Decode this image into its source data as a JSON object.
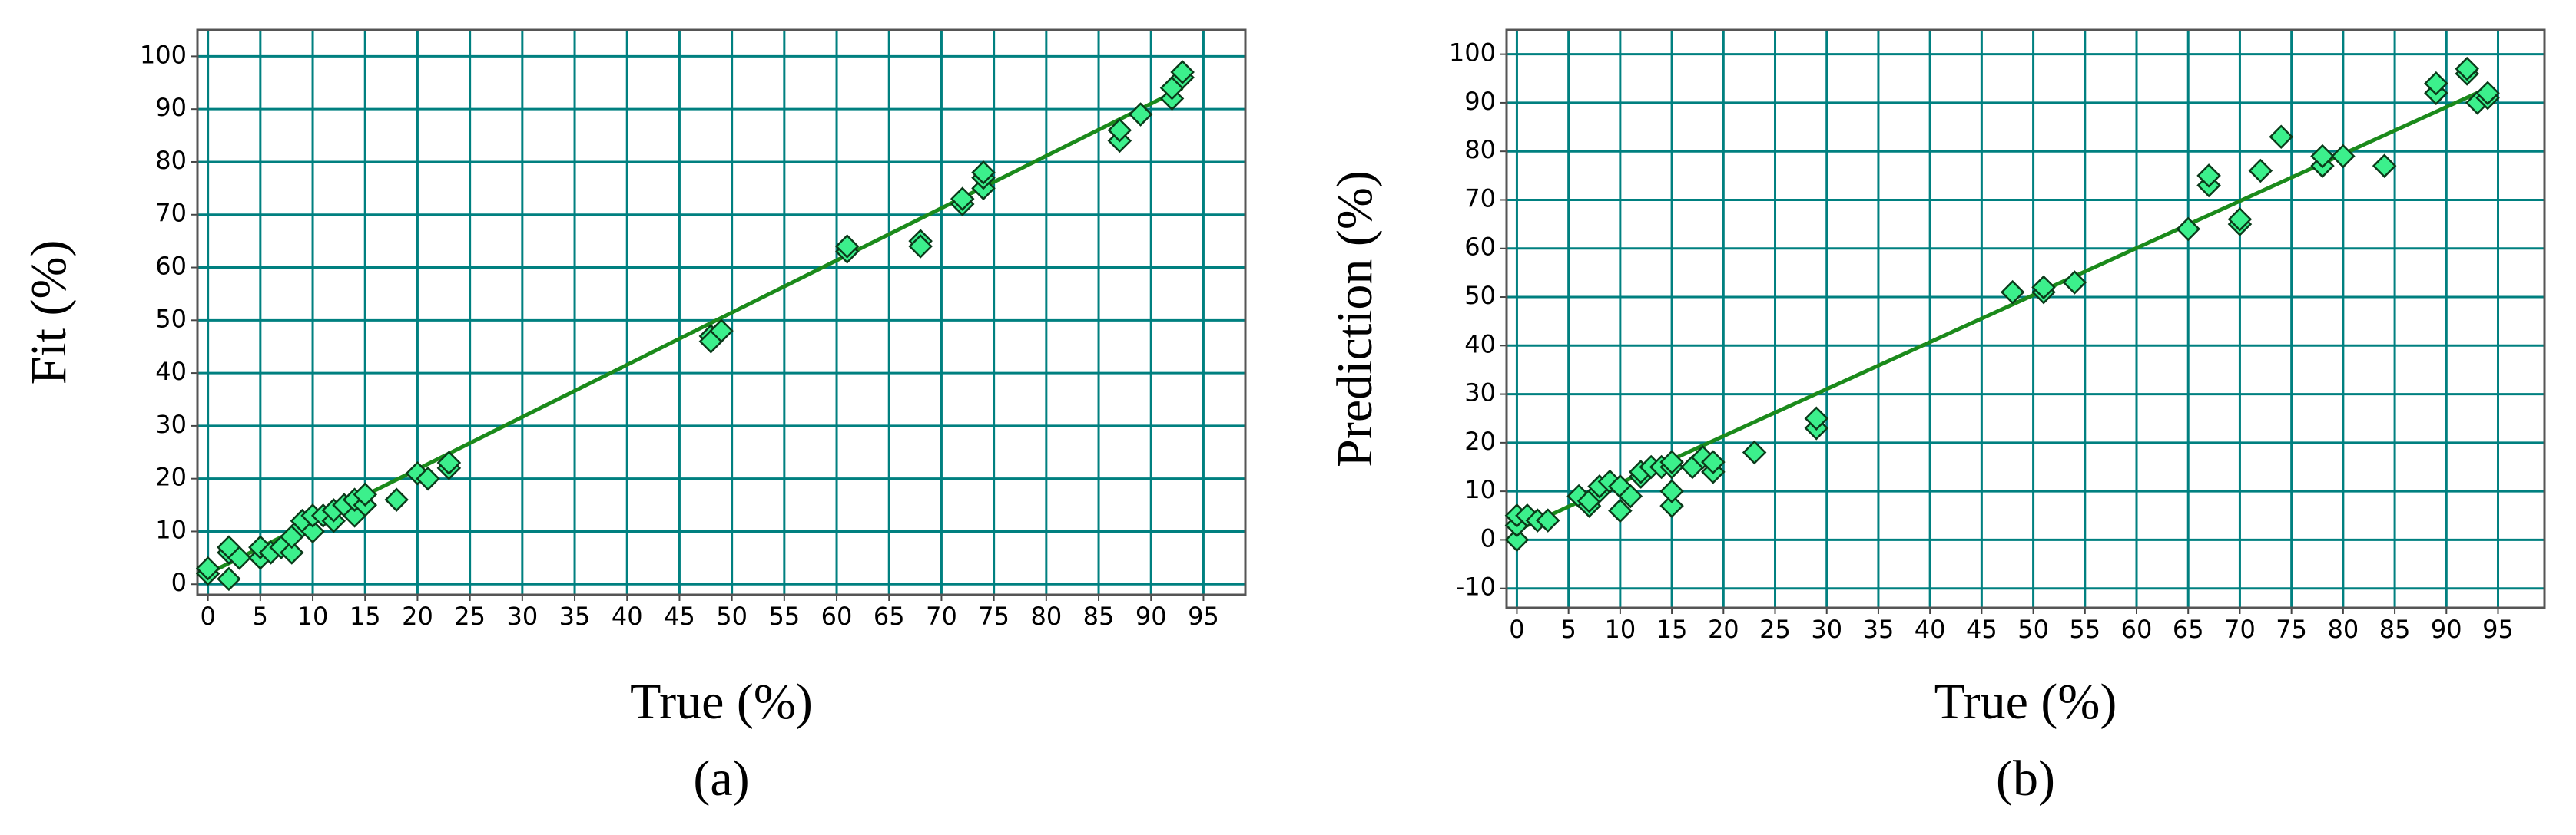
{
  "chart_data": [
    {
      "type": "scatter",
      "xlabel": "True (%)",
      "ylabel": "Fit (%)",
      "caption": "(a)",
      "xlim": [
        -1,
        99
      ],
      "ylim": [
        -2,
        105
      ],
      "xticks": [
        0,
        5,
        10,
        15,
        20,
        25,
        30,
        35,
        40,
        45,
        50,
        55,
        60,
        65,
        70,
        75,
        80,
        85,
        90,
        95
      ],
      "yticks": [
        0,
        10,
        20,
        30,
        40,
        50,
        60,
        70,
        80,
        90,
        100
      ],
      "grid": true,
      "grid_color": "#008080",
      "series": [
        {
          "marker": "diamond",
          "color": "#3cf08c",
          "x": [
            0,
            0,
            2,
            2,
            2,
            3,
            5,
            5,
            6,
            7,
            8,
            8,
            9,
            9,
            10,
            10,
            11,
            12,
            12,
            13,
            14,
            14,
            15,
            15,
            18,
            20,
            21,
            23,
            23,
            48,
            48,
            49,
            61,
            61,
            68,
            68,
            72,
            72,
            74,
            74,
            74,
            87,
            87,
            89,
            92,
            92,
            93,
            93
          ],
          "values": [
            2,
            3,
            1,
            6,
            7,
            5,
            5,
            7,
            6,
            7,
            6,
            9,
            11,
            12,
            10,
            13,
            13,
            12,
            14,
            15,
            13,
            16,
            15,
            17,
            16,
            21,
            20,
            22,
            23,
            47,
            46,
            48,
            63,
            64,
            65,
            64,
            72,
            73,
            75,
            77,
            78,
            84,
            86,
            89,
            92,
            94,
            96,
            97
          ]
        },
        {
          "marker": "line",
          "color": "#1b8a1b",
          "x": [
            0,
            93
          ],
          "values": [
            2,
            94
          ]
        }
      ]
    },
    {
      "type": "scatter",
      "xlabel": "True (%)",
      "ylabel": "Prediction (%)",
      "caption": "(b)",
      "xlim": [
        -1,
        99.5
      ],
      "ylim": [
        -14,
        105
      ],
      "xticks": [
        0,
        5,
        10,
        15,
        20,
        25,
        30,
        35,
        40,
        45,
        50,
        55,
        60,
        65,
        70,
        75,
        80,
        85,
        90,
        95
      ],
      "yticks": [
        -10,
        0,
        10,
        20,
        30,
        40,
        50,
        60,
        70,
        80,
        90,
        100
      ],
      "grid": true,
      "grid_color": "#008080",
      "series": [
        {
          "marker": "diamond",
          "color": "#3cf08c",
          "x": [
            0,
            0,
            0,
            1,
            2,
            3,
            6,
            7,
            7,
            8,
            8,
            9,
            10,
            10,
            11,
            12,
            12,
            13,
            14,
            15,
            15,
            15,
            15,
            17,
            18,
            19,
            19,
            23,
            29,
            29,
            48,
            51,
            51,
            54,
            65,
            67,
            67,
            70,
            70,
            72,
            74,
            78,
            78,
            80,
            84,
            89,
            89,
            92,
            92,
            93,
            94,
            94
          ],
          "values": [
            0,
            3,
            5,
            5,
            4,
            4,
            9,
            7,
            8,
            10,
            11,
            12,
            6,
            11,
            9,
            13,
            14,
            15,
            15,
            7,
            10,
            15,
            16,
            15,
            17,
            14,
            16,
            18,
            23,
            25,
            51,
            51,
            52,
            53,
            64,
            73,
            75,
            65,
            66,
            76,
            83,
            77,
            79,
            79,
            77,
            92,
            94,
            96,
            97,
            90,
            91,
            92
          ]
        },
        {
          "marker": "line",
          "color": "#1b8a1b",
          "x": [
            0,
            94
          ],
          "values": [
            2,
            93
          ]
        }
      ]
    }
  ]
}
